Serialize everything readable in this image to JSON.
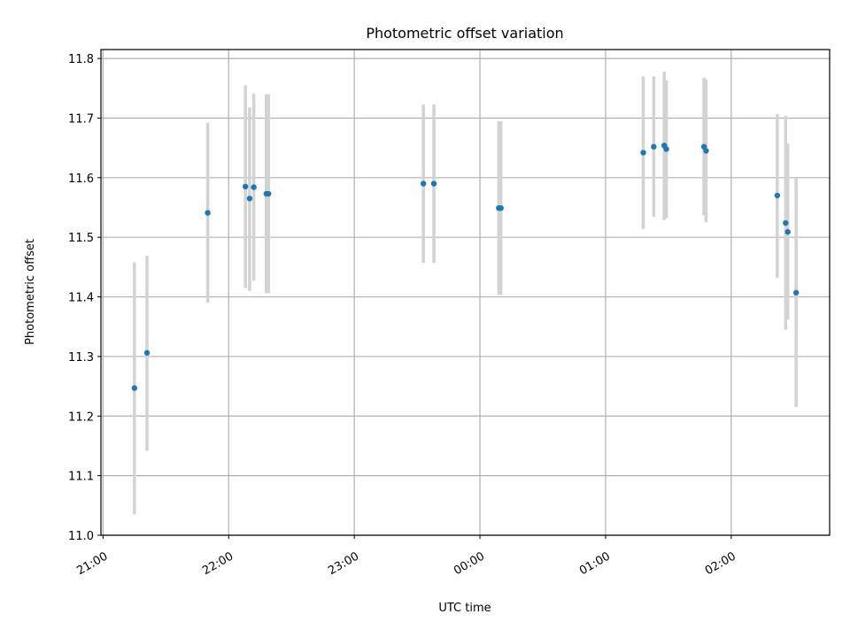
{
  "chart_data": {
    "type": "scatter",
    "title": "Photometric offset variation",
    "xlabel": "UTC time",
    "ylabel": "Photometric offset",
    "x_tick_labels": [
      "21:00",
      "22:00",
      "23:00",
      "00:00",
      "01:00",
      "02:00"
    ],
    "y_tick_labels": [
      "11.0",
      "11.1",
      "11.2",
      "11.3",
      "11.4",
      "11.5",
      "11.6",
      "11.7",
      "11.8"
    ],
    "ylim": [
      11.0,
      11.815
    ],
    "xlim": [
      "20:59",
      "02:47"
    ],
    "grid": true,
    "marker_color": "#1f77b4",
    "errorbar_color": "#d3d3d3",
    "points": [
      {
        "t": "21:15",
        "y": 11.247,
        "ylo": 11.035,
        "yhi": 11.458
      },
      {
        "t": "21:21",
        "y": 11.306,
        "ylo": 11.142,
        "yhi": 11.469
      },
      {
        "t": "21:50",
        "y": 11.541,
        "ylo": 11.39,
        "yhi": 11.692
      },
      {
        "t": "22:08",
        "y": 11.585,
        "ylo": 11.415,
        "yhi": 11.755
      },
      {
        "t": "22:10",
        "y": 11.565,
        "ylo": 11.41,
        "yhi": 11.718
      },
      {
        "t": "22:12",
        "y": 11.584,
        "ylo": 11.427,
        "yhi": 11.741
      },
      {
        "t": "22:18",
        "y": 11.573,
        "ylo": 11.406,
        "yhi": 11.74
      },
      {
        "t": "22:19",
        "y": 11.573,
        "ylo": 11.406,
        "yhi": 11.74
      },
      {
        "t": "23:33",
        "y": 11.59,
        "ylo": 11.457,
        "yhi": 11.723
      },
      {
        "t": "23:38",
        "y": 11.59,
        "ylo": 11.457,
        "yhi": 11.723
      },
      {
        "t": "00:09",
        "y": 11.549,
        "ylo": 11.403,
        "yhi": 11.695
      },
      {
        "t": "00:10",
        "y": 11.549,
        "ylo": 11.403,
        "yhi": 11.695
      },
      {
        "t": "01:18",
        "y": 11.642,
        "ylo": 11.514,
        "yhi": 11.77
      },
      {
        "t": "01:23",
        "y": 11.652,
        "ylo": 11.534,
        "yhi": 11.77
      },
      {
        "t": "01:28",
        "y": 11.654,
        "ylo": 11.529,
        "yhi": 11.778
      },
      {
        "t": "01:29",
        "y": 11.648,
        "ylo": 11.532,
        "yhi": 11.763
      },
      {
        "t": "01:47",
        "y": 11.652,
        "ylo": 11.537,
        "yhi": 11.768
      },
      {
        "t": "01:48",
        "y": 11.645,
        "ylo": 11.525,
        "yhi": 11.765
      },
      {
        "t": "02:22",
        "y": 11.57,
        "ylo": 11.432,
        "yhi": 11.707
      },
      {
        "t": "02:26",
        "y": 11.524,
        "ylo": 11.345,
        "yhi": 11.704
      },
      {
        "t": "02:27",
        "y": 11.509,
        "ylo": 11.362,
        "yhi": 11.657
      },
      {
        "t": "02:31",
        "y": 11.407,
        "ylo": 11.215,
        "yhi": 11.6
      }
    ]
  }
}
